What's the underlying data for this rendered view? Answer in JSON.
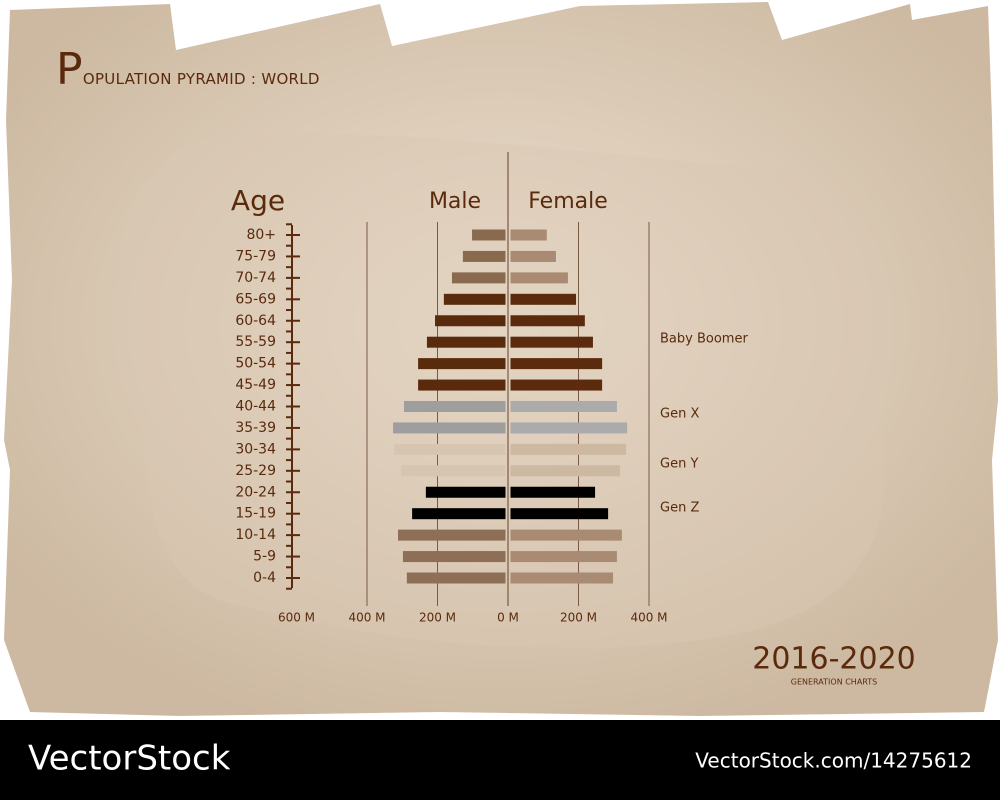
{
  "chart_data": {
    "type": "pyramid",
    "title": "POPULATION PYRAMID : WORLD",
    "y_axis_label": "Age",
    "categories": [
      "80+",
      "75-79",
      "70-74",
      "65-69",
      "60-64",
      "55-59",
      "50-54",
      "45-49",
      "40-44",
      "35-39",
      "30-34",
      "25-29",
      "20-24",
      "15-19",
      "10-14",
      "5-9",
      "0-4"
    ],
    "series": [
      {
        "name": "Male",
        "side": "left",
        "values": [
          102,
          128,
          159,
          182,
          207,
          230,
          255,
          255,
          295,
          326,
          323,
          304,
          233,
          272,
          312,
          298,
          287
        ],
        "colors": [
          "#8a6a4f",
          "#8a6a4f",
          "#8a6a4f",
          "#5a2a0c",
          "#5a2a0c",
          "#5a2a0c",
          "#5a2a0c",
          "#5a2a0c",
          "#9e9e9e",
          "#9e9e9e",
          "#d6c5b0",
          "#d6c5b0",
          "#000000",
          "#000000",
          "#8d6e57",
          "#8d6e57",
          "#8d6e57"
        ]
      },
      {
        "name": "Female",
        "side": "right",
        "values": [
          110,
          136,
          170,
          193,
          218,
          241,
          267,
          267,
          309,
          338,
          335,
          318,
          247,
          284,
          323,
          309,
          298
        ],
        "colors": [
          "#a88b72",
          "#a88b72",
          "#a88b72",
          "#5c2a0c",
          "#5c2a0c",
          "#5c2a0c",
          "#5c2a0c",
          "#5c2a0c",
          "#ababab",
          "#ababab",
          "#cdb9a2",
          "#cdb9a2",
          "#000000",
          "#000000",
          "#a88b72",
          "#a88b72",
          "#a88b72"
        ]
      }
    ],
    "xlim": [
      -600,
      400
    ],
    "xticks": [
      {
        "value": -600,
        "label": "600 M"
      },
      {
        "value": -400,
        "label": "400 M"
      },
      {
        "value": -200,
        "label": "200 M"
      },
      {
        "value": 0,
        "label": "0 M"
      },
      {
        "value": 200,
        "label": "200 M"
      },
      {
        "value": 400,
        "label": "400 M"
      }
    ],
    "grid": true,
    "annotations": [
      "Baby Boomer",
      "Gen X",
      "Gen Y",
      "Gen Z"
    ],
    "period": "2016-2020",
    "period_caption": "GENERATION CHARTS"
  },
  "footer": {
    "brand": "VectorStock",
    "url": "VectorStock.com/14275612"
  }
}
